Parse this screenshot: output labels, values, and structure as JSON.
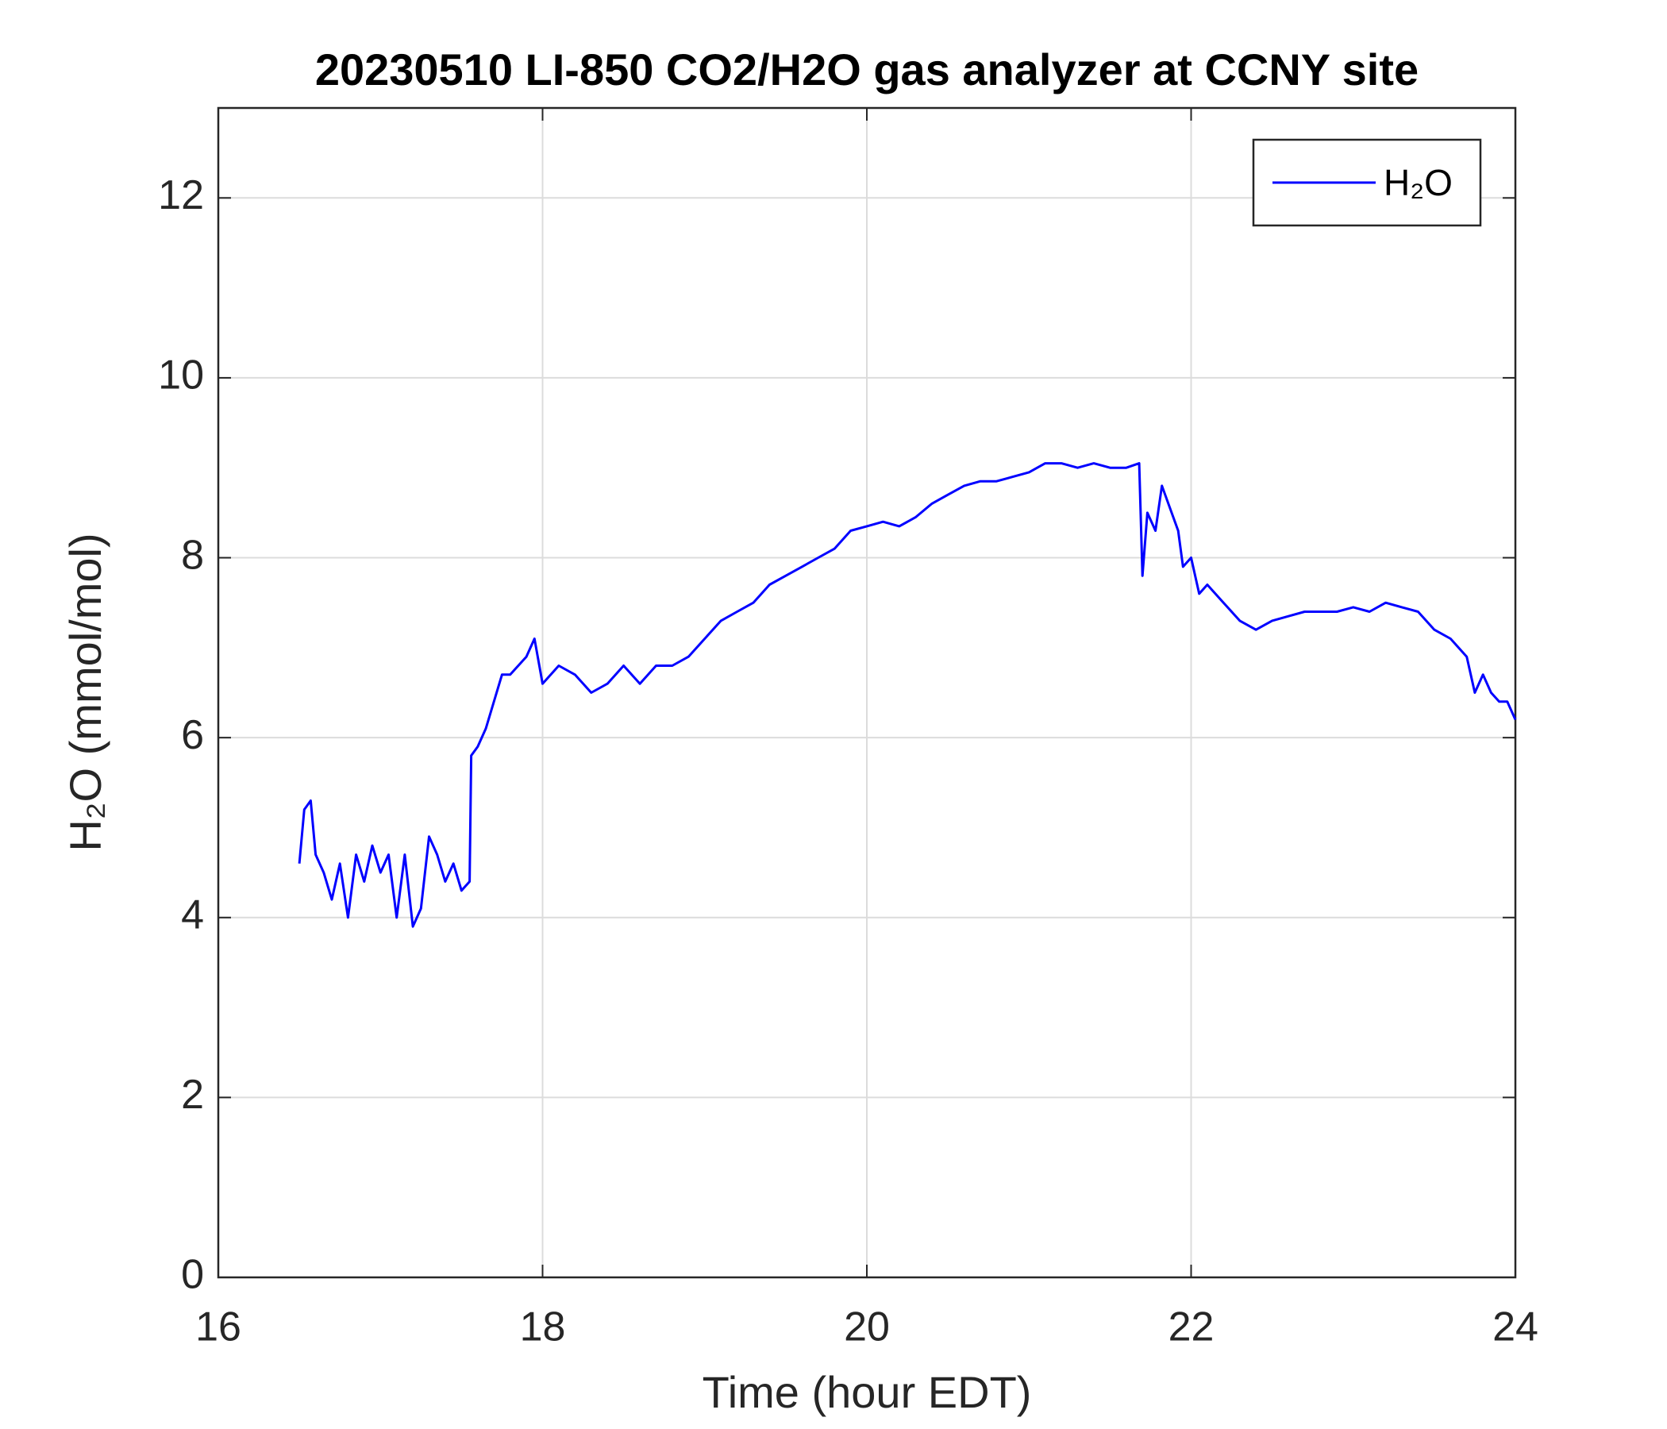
{
  "chart_data": {
    "type": "line",
    "title": "20230510 LI-850 CO2/H2O gas analyzer at CCNY site",
    "xlabel": "Time (hour EDT)",
    "ylabel": "H₂O (mmol/mol)",
    "xlim": [
      16,
      24
    ],
    "xticks": [
      16,
      18,
      20,
      22,
      24
    ],
    "ylim": [
      0,
      13
    ],
    "yticks": [
      0,
      2,
      4,
      6,
      8,
      10,
      12
    ],
    "grid": true,
    "legend": "upper right",
    "x": [
      16.5,
      16.53,
      16.57,
      16.6,
      16.65,
      16.7,
      16.75,
      16.8,
      16.85,
      16.9,
      16.95,
      17.0,
      17.05,
      17.1,
      17.15,
      17.2,
      17.25,
      17.3,
      17.35,
      17.4,
      17.45,
      17.5,
      17.55,
      17.56,
      17.6,
      17.65,
      17.7,
      17.75,
      17.8,
      17.9,
      17.95,
      18.0,
      18.1,
      18.2,
      18.3,
      18.4,
      18.5,
      18.6,
      18.7,
      18.8,
      18.9,
      19.0,
      19.1,
      19.2,
      19.3,
      19.4,
      19.5,
      19.6,
      19.7,
      19.8,
      19.9,
      20.0,
      20.1,
      20.2,
      20.3,
      20.4,
      20.5,
      20.6,
      20.7,
      20.8,
      20.9,
      21.0,
      21.1,
      21.2,
      21.3,
      21.4,
      21.5,
      21.6,
      21.68,
      21.7,
      21.73,
      21.78,
      21.82,
      21.88,
      21.92,
      21.95,
      22.0,
      22.05,
      22.1,
      22.2,
      22.3,
      22.4,
      22.5,
      22.6,
      22.7,
      22.8,
      22.9,
      23.0,
      23.1,
      23.2,
      23.3,
      23.4,
      23.5,
      23.6,
      23.7,
      23.75,
      23.8,
      23.85,
      23.9,
      23.95,
      24.0
    ],
    "series": [
      {
        "name": "H₂O",
        "color": "#0000ff",
        "values": [
          4.6,
          5.2,
          5.3,
          4.7,
          4.5,
          4.2,
          4.6,
          4.0,
          4.7,
          4.4,
          4.8,
          4.5,
          4.7,
          4.0,
          4.7,
          3.9,
          4.1,
          4.9,
          4.7,
          4.4,
          4.6,
          4.3,
          4.4,
          5.8,
          5.9,
          6.1,
          6.4,
          6.7,
          6.7,
          6.9,
          7.1,
          6.6,
          6.8,
          6.7,
          6.5,
          6.6,
          6.8,
          6.6,
          6.8,
          6.8,
          6.9,
          7.1,
          7.3,
          7.4,
          7.5,
          7.7,
          7.8,
          7.9,
          8.0,
          8.1,
          8.3,
          8.35,
          8.4,
          8.35,
          8.45,
          8.6,
          8.7,
          8.8,
          8.85,
          8.85,
          8.9,
          8.95,
          9.05,
          9.05,
          9.0,
          9.05,
          9.0,
          9.0,
          9.05,
          7.8,
          8.5,
          8.3,
          8.8,
          8.5,
          8.3,
          7.9,
          8.0,
          7.6,
          7.7,
          7.5,
          7.3,
          7.2,
          7.3,
          7.35,
          7.4,
          7.4,
          7.4,
          7.45,
          7.4,
          7.5,
          7.45,
          7.4,
          7.2,
          7.1,
          6.9,
          6.5,
          6.7,
          6.5,
          6.4,
          6.4,
          6.2
        ]
      }
    ]
  }
}
